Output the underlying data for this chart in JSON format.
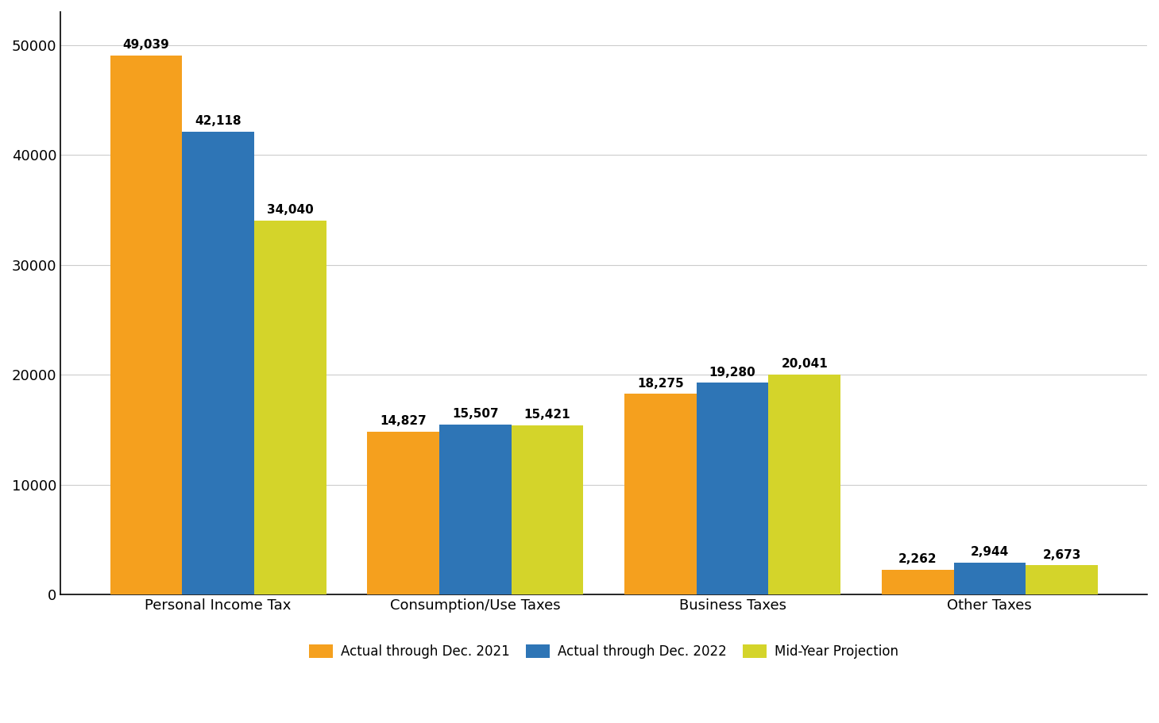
{
  "categories": [
    "Personal Income Tax",
    "Consumption/Use Taxes",
    "Business Taxes",
    "Other Taxes"
  ],
  "series": {
    "Actual through Dec. 2021": [
      49039,
      14827,
      18275,
      2262
    ],
    "Actual through Dec. 2022": [
      42118,
      15507,
      19280,
      2944
    ],
    "Mid-Year Projection": [
      34040,
      15421,
      20041,
      2673
    ]
  },
  "bar_colors": {
    "Actual through Dec. 2021": "#F5A01E",
    "Actual through Dec. 2022": "#2E75B6",
    "Mid-Year Projection": "#D4D42A"
  },
  "ylim": [
    0,
    53000
  ],
  "yticks": [
    0,
    10000,
    20000,
    30000,
    40000,
    50000
  ],
  "ylabel": "",
  "xlabel": "",
  "background_color": "#FFFFFF",
  "grid_color": "#CCCCCC",
  "bar_width": 0.28,
  "bar_gap": 0.0,
  "legend_loc": "lower center",
  "tick_fontsize": 13,
  "annotation_fontsize": 11,
  "xlabel_fontsize": 13
}
